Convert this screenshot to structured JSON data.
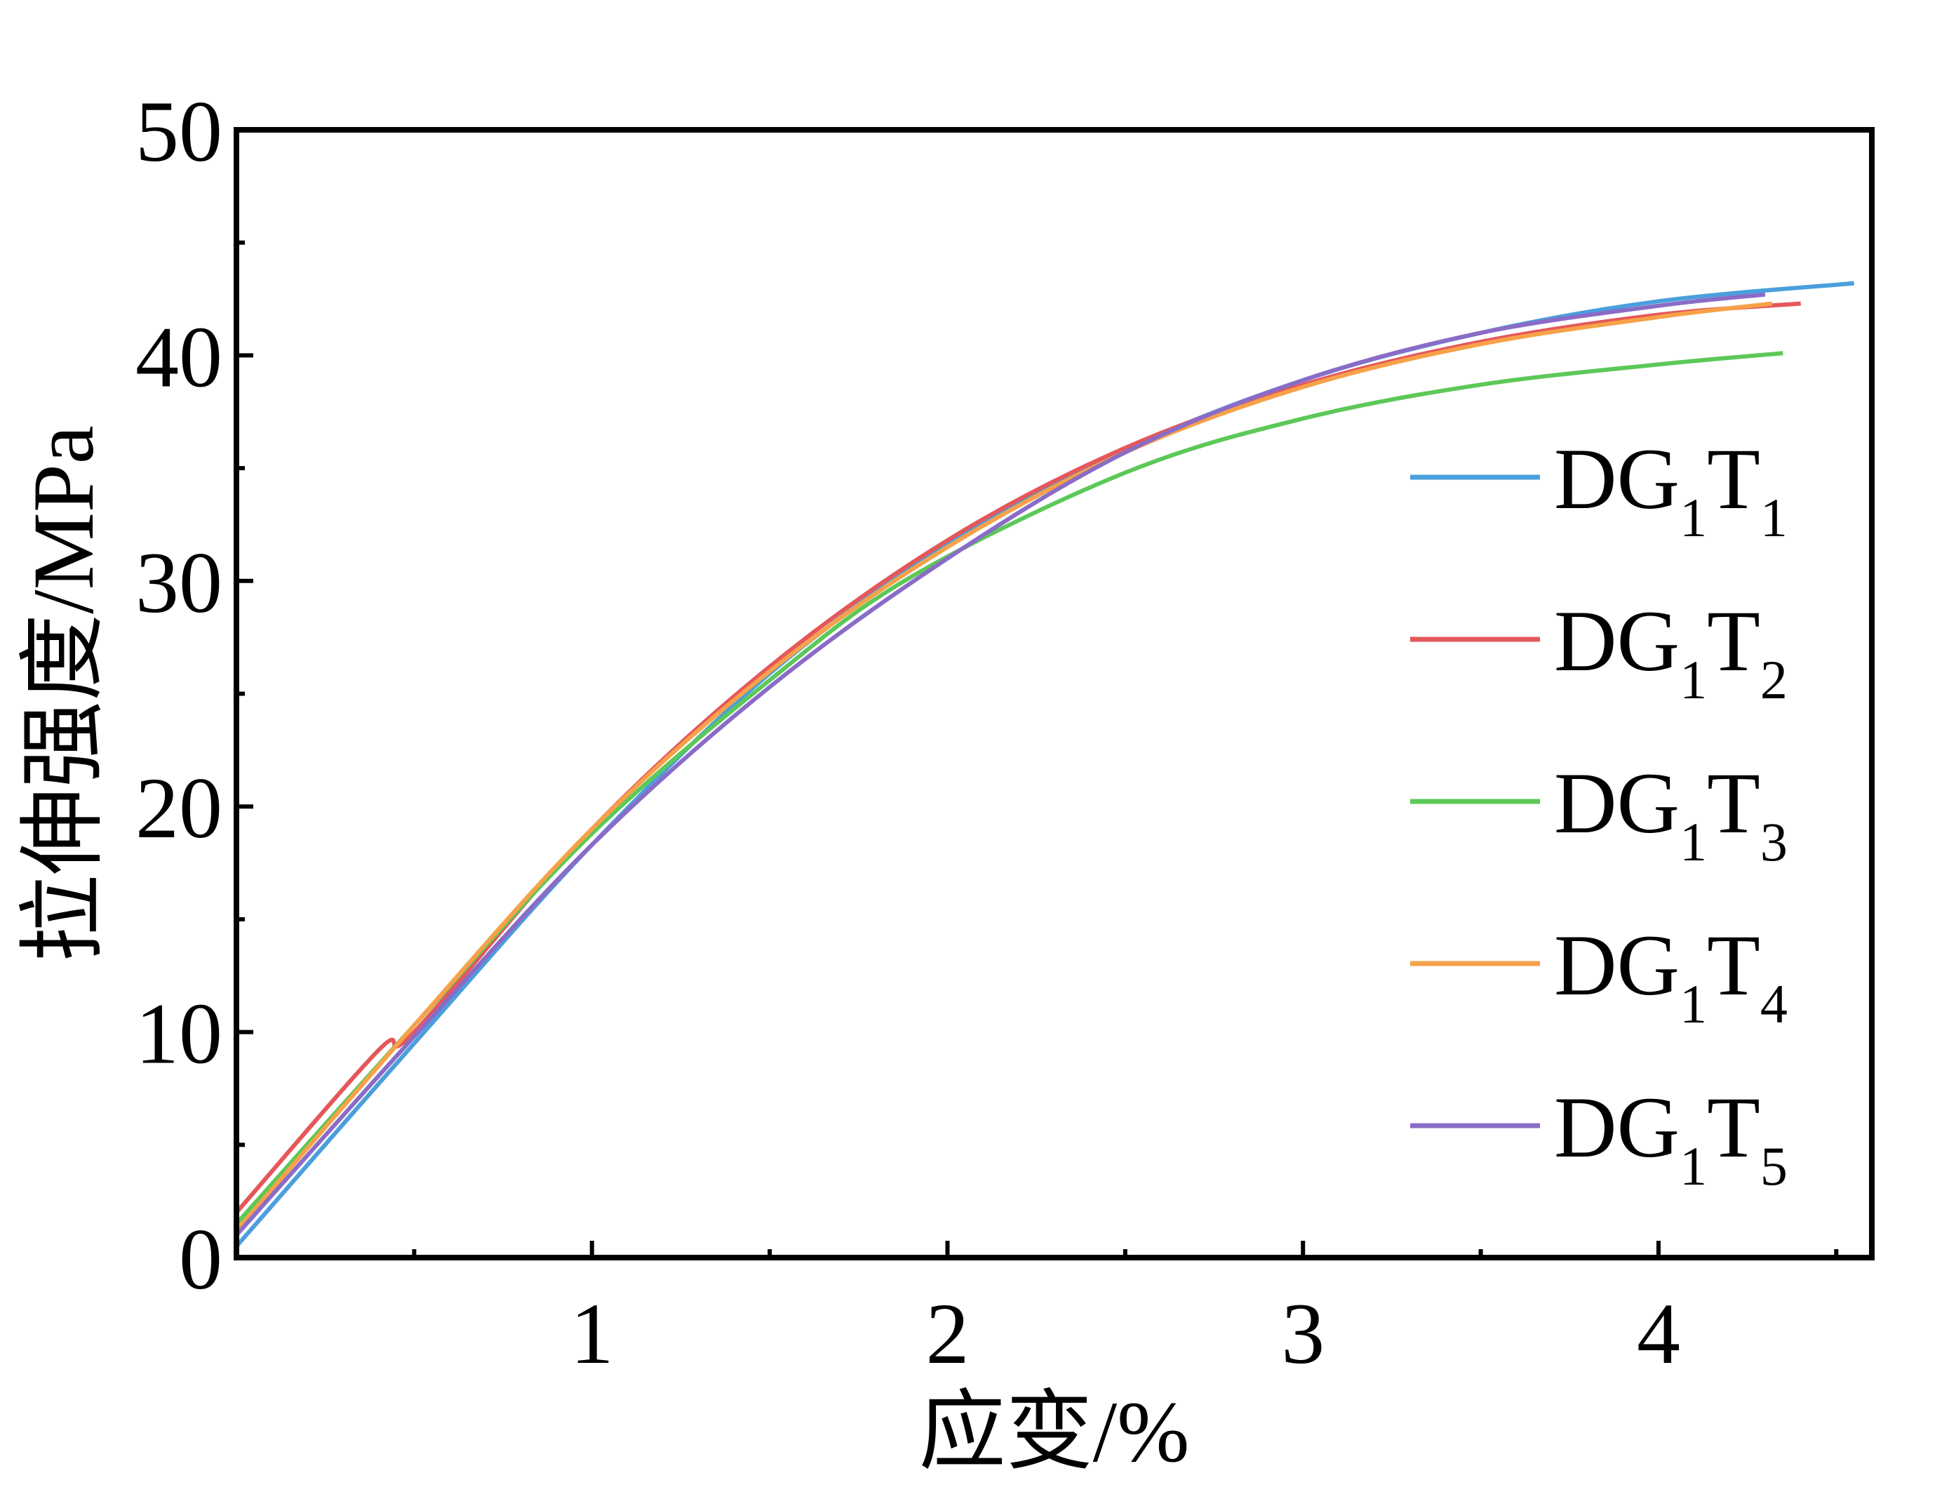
{
  "chart_data": {
    "type": "line",
    "xlabel": "应变/%",
    "ylabel": "拉伸强度/MPa",
    "xlim": [
      0,
      4.6
    ],
    "ylim": [
      0,
      50
    ],
    "x_ticks": [
      1,
      2,
      3,
      4
    ],
    "x_tick_labels": [
      "1",
      "2",
      "3",
      "4"
    ],
    "x_minor_ticks": [
      0.5,
      1.5,
      2.5,
      3.5,
      4.5
    ],
    "y_ticks": [
      0,
      10,
      20,
      30,
      40,
      50
    ],
    "y_tick_labels": [
      "0",
      "10",
      "20",
      "30",
      "40",
      "50"
    ],
    "y_minor_ticks": [
      5,
      15,
      25,
      35,
      45
    ],
    "grid": false,
    "legend_position": "right",
    "series": [
      {
        "name": "DG1T1",
        "legend_main": "DG",
        "legend_sub1": "1",
        "legend_mid": "T",
        "legend_sub2": "1",
        "color": "#4a9fdc",
        "x": [
          0,
          0.5,
          1.0,
          1.5,
          2.0,
          2.5,
          3.0,
          3.5,
          4.0,
          4.55
        ],
        "y": [
          0.5,
          9.5,
          18.3,
          25.9,
          31.6,
          35.8,
          38.9,
          41.0,
          42.4,
          43.2
        ]
      },
      {
        "name": "DG1T2",
        "legend_main": "DG",
        "legend_sub1": "1",
        "legend_mid": "T",
        "legend_sub2": "2",
        "color": "#e5575a",
        "x": [
          0,
          0.4,
          0.5,
          1.0,
          1.5,
          2.0,
          2.5,
          3.0,
          3.5,
          4.0,
          4.4
        ],
        "y": [
          2.0,
          9.2,
          10.0,
          19.0,
          26.2,
          31.8,
          35.9,
          38.7,
          40.6,
          41.8,
          42.3
        ]
      },
      {
        "name": "DG1T3",
        "legend_main": "DG",
        "legend_sub1": "1",
        "legend_mid": "T",
        "legend_sub2": "3",
        "color": "#5cc858",
        "x": [
          0,
          0.5,
          1.0,
          1.5,
          1.9,
          2.5,
          3.0,
          3.5,
          4.0,
          4.35
        ],
        "y": [
          1.5,
          10.3,
          18.8,
          25.6,
          30.2,
          34.8,
          37.2,
          38.7,
          39.6,
          40.1
        ]
      },
      {
        "name": "DG1T4",
        "legend_main": "DG",
        "legend_sub1": "1",
        "legend_mid": "T",
        "legend_sub2": "4",
        "color": "#f7a148",
        "x": [
          0,
          0.5,
          1.0,
          1.5,
          2.0,
          2.5,
          3.0,
          3.5,
          4.0,
          4.32
        ],
        "y": [
          1.2,
          10.3,
          19.0,
          26.0,
          31.5,
          35.7,
          38.6,
          40.5,
          41.7,
          42.3
        ]
      },
      {
        "name": "DG1T5",
        "legend_main": "DG",
        "legend_sub1": "1",
        "legend_mid": "T",
        "legend_sub2": "5",
        "color": "#8a6cc7",
        "x": [
          0,
          0.5,
          1.0,
          1.5,
          2.0,
          2.5,
          3.0,
          3.5,
          4.0,
          4.3
        ],
        "y": [
          1.0,
          9.8,
          18.3,
          25.3,
          31.0,
          35.7,
          38.9,
          41.0,
          42.2,
          42.7
        ]
      }
    ]
  }
}
